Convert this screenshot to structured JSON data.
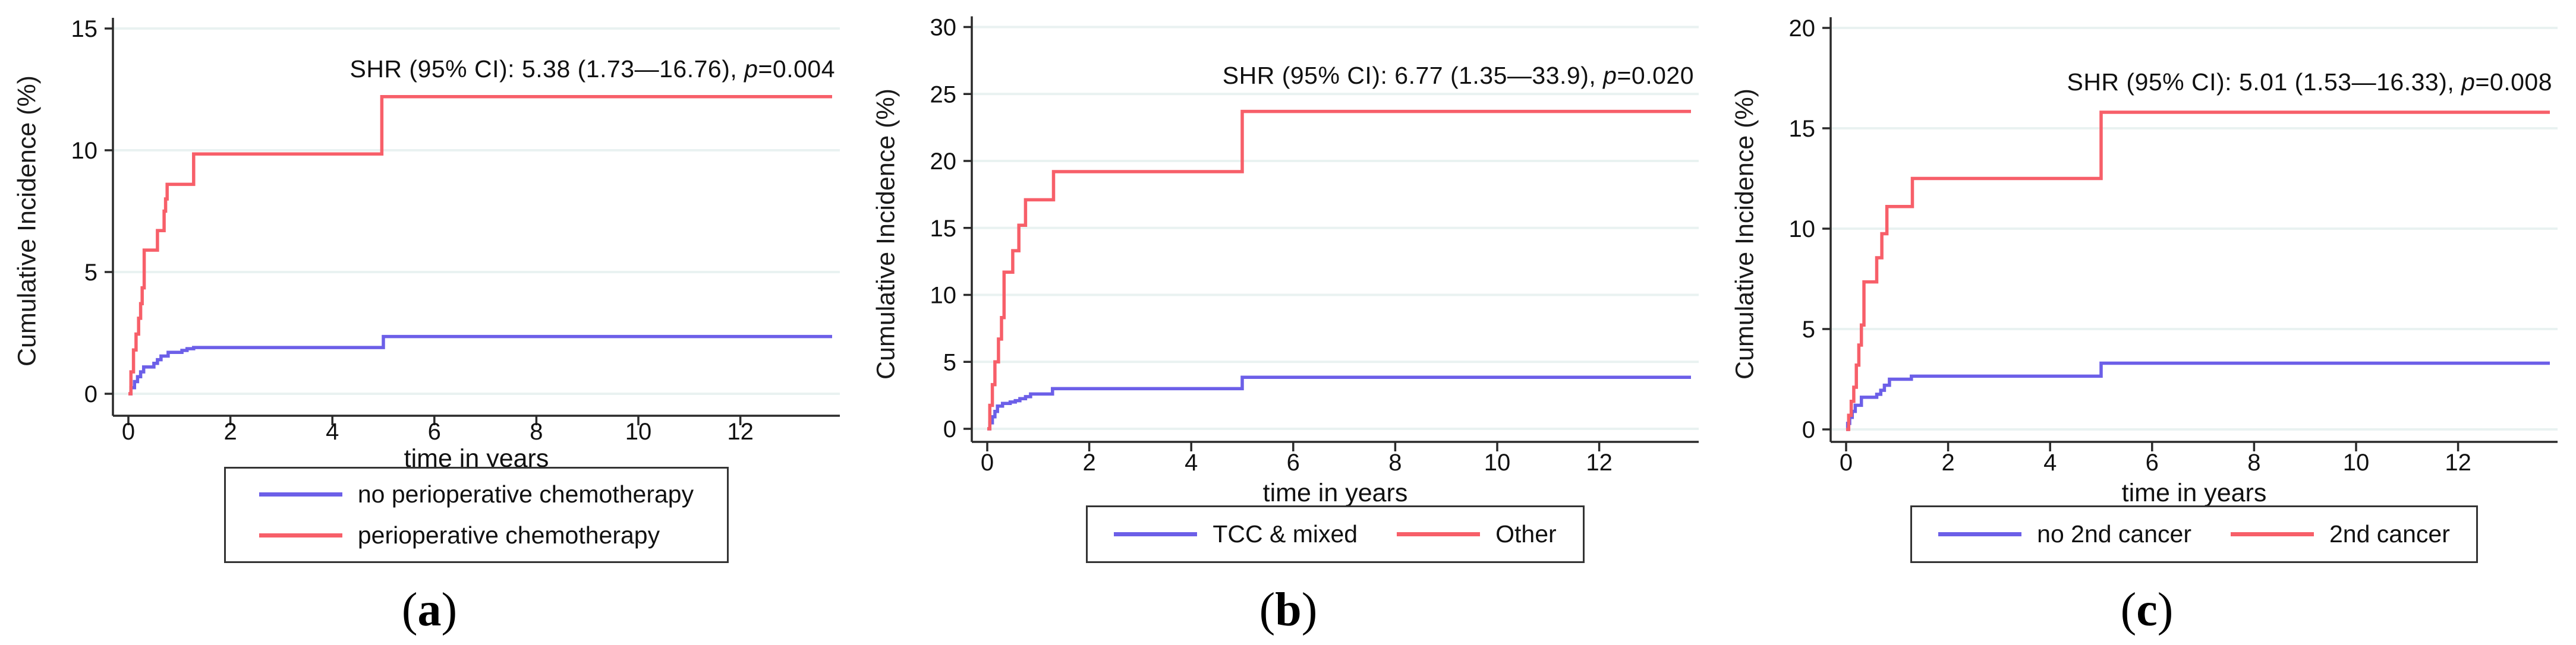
{
  "figure": {
    "description": "Three competing-risk cumulative incidence step plots",
    "background": "#ffffff"
  },
  "colors": {
    "blue_series": "#6c5fe8",
    "red_series": "#f75f69",
    "gridline": "#e9f2f1",
    "axis": "#2a2a2a",
    "text": "#111111",
    "legend_border": "#333333"
  },
  "chart_data": [
    {
      "id": "a",
      "type": "line",
      "subtype": "step",
      "title": "",
      "ylabel": "Cumulative Incidence (%)",
      "xlabel": "time in years",
      "ylim": [
        0,
        15
      ],
      "xlim": [
        0,
        13.8
      ],
      "yticks": [
        0,
        5,
        10,
        15
      ],
      "xticks": [
        0,
        2,
        4,
        6,
        8,
        10,
        12
      ],
      "grid": "horizontal",
      "legend_position": "bottom",
      "annotation": {
        "text": "SHR (95% CI): 5.38 (1.73—16.76), p=0.004",
        "prefix": "SHR (95% CI): 5.38 (1.73—16.76), ",
        "p_symbol": "p",
        "p_equals": "=0.004"
      },
      "caption": {
        "open": "(",
        "letter": "a",
        "close": ")"
      },
      "series": [
        {
          "name": "no perioperative chemotherapy",
          "color": "#6c5fe8",
          "x": [
            0,
            0.05,
            0.12,
            0.18,
            0.24,
            0.3,
            0.5,
            0.57,
            0.64,
            0.78,
            1.05,
            1.15,
            1.28,
            5.0,
            13.8
          ],
          "y": [
            0,
            0.25,
            0.5,
            0.7,
            0.9,
            1.1,
            1.25,
            1.4,
            1.55,
            1.7,
            1.78,
            1.85,
            1.9,
            2.35,
            2.35
          ]
        },
        {
          "name": "perioperative chemotherapy",
          "color": "#f75f69",
          "x": [
            0,
            0.05,
            0.1,
            0.15,
            0.2,
            0.24,
            0.27,
            0.31,
            0.57,
            0.7,
            0.73,
            0.76,
            1.28,
            4.97,
            13.8
          ],
          "y": [
            0,
            0.9,
            1.8,
            2.45,
            3.1,
            3.7,
            4.35,
            5.9,
            6.7,
            7.5,
            8.0,
            8.6,
            9.85,
            12.2,
            12.2
          ]
        }
      ]
    },
    {
      "id": "b",
      "type": "line",
      "subtype": "step",
      "title": "",
      "ylabel": "Cumulative Incidence (%)",
      "xlabel": "time in years",
      "ylim": [
        0,
        30
      ],
      "xlim": [
        0,
        13.8
      ],
      "yticks": [
        0,
        5,
        10,
        15,
        20,
        25,
        30
      ],
      "xticks": [
        0,
        2,
        4,
        6,
        8,
        10,
        12
      ],
      "grid": "horizontal",
      "legend_position": "bottom",
      "annotation": {
        "text": "SHR (95% CI): 6.77 (1.35—33.9), p=0.020",
        "prefix": "SHR (95% CI): 6.77 (1.35—33.9), ",
        "p_symbol": "p",
        "p_equals": "=0.020"
      },
      "caption": {
        "open": "(",
        "letter": "b",
        "close": ")"
      },
      "series": [
        {
          "name": "TCC & mixed",
          "color": "#6c5fe8",
          "x": [
            0,
            0.05,
            0.1,
            0.15,
            0.2,
            0.3,
            0.45,
            0.55,
            0.64,
            0.75,
            0.85,
            1.28,
            5.0,
            13.8
          ],
          "y": [
            0,
            0.45,
            0.9,
            1.3,
            1.7,
            1.9,
            2.0,
            2.1,
            2.25,
            2.4,
            2.6,
            3.0,
            3.85,
            3.85
          ]
        },
        {
          "name": "Other",
          "color": "#f75f69",
          "x": [
            0,
            0.05,
            0.1,
            0.15,
            0.22,
            0.28,
            0.33,
            0.5,
            0.62,
            0.75,
            1.3,
            5.0,
            13.8
          ],
          "y": [
            0,
            1.75,
            3.3,
            5.0,
            6.7,
            8.3,
            11.7,
            13.3,
            15.2,
            17.1,
            19.2,
            23.7,
            23.7
          ]
        }
      ]
    },
    {
      "id": "c",
      "type": "line",
      "subtype": "step",
      "title": "",
      "ylabel": "Cumulative Incidence (%)",
      "xlabel": "time in years",
      "ylim": [
        0,
        20
      ],
      "xlim": [
        0,
        13.8
      ],
      "yticks": [
        0,
        5,
        10,
        15,
        20
      ],
      "xticks": [
        0,
        2,
        4,
        6,
        8,
        10,
        12
      ],
      "grid": "horizontal",
      "legend_position": "bottom",
      "annotation": {
        "text": "SHR (95% CI): 5.01 (1.53—16.33), p=0.008",
        "prefix": "SHR (95% CI): 5.01 (1.53—16.33), ",
        "p_symbol": "p",
        "p_equals": "=0.008"
      },
      "caption": {
        "open": "(",
        "letter": "c",
        "close": ")"
      },
      "series": [
        {
          "name": "no 2nd cancer",
          "color": "#6c5fe8",
          "x": [
            0,
            0.03,
            0.07,
            0.12,
            0.18,
            0.3,
            0.6,
            0.68,
            0.75,
            0.85,
            1.28,
            5.0,
            13.8
          ],
          "y": [
            0,
            0.3,
            0.6,
            0.9,
            1.2,
            1.6,
            1.75,
            1.95,
            2.2,
            2.5,
            2.65,
            3.3,
            3.3
          ]
        },
        {
          "name": "2nd cancer",
          "color": "#f75f69",
          "x": [
            0,
            0.05,
            0.1,
            0.15,
            0.2,
            0.25,
            0.3,
            0.35,
            0.6,
            0.7,
            0.8,
            1.3,
            5.0,
            13.8
          ],
          "y": [
            0,
            0.7,
            1.4,
            2.1,
            3.2,
            4.2,
            5.2,
            7.35,
            8.55,
            9.75,
            11.1,
            12.5,
            15.8,
            15.8
          ]
        }
      ]
    }
  ]
}
